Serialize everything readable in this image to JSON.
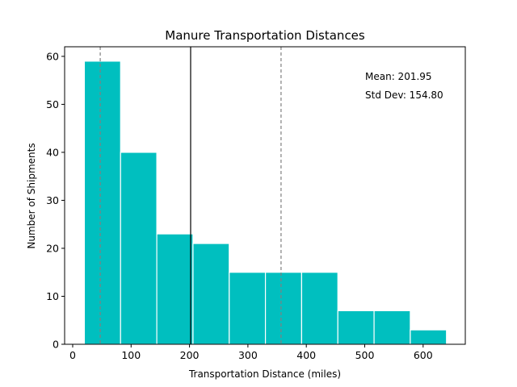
{
  "chart_data": {
    "type": "bar",
    "title": "Manure Transportation Distances",
    "xlabel": "Transportation Distance (miles)",
    "ylabel": "Number of Shipments",
    "bins": [
      {
        "start": 20,
        "end": 82,
        "count": 59
      },
      {
        "start": 82,
        "end": 144,
        "count": 40
      },
      {
        "start": 144,
        "end": 206,
        "count": 23
      },
      {
        "start": 206,
        "end": 268,
        "count": 21
      },
      {
        "start": 268,
        "end": 330,
        "count": 15
      },
      {
        "start": 330,
        "end": 392,
        "count": 15
      },
      {
        "start": 392,
        "end": 454,
        "count": 15
      },
      {
        "start": 454,
        "end": 516,
        "count": 7
      },
      {
        "start": 516,
        "end": 578,
        "count": 7
      },
      {
        "start": 578,
        "end": 640,
        "count": 3
      }
    ],
    "xlim": [
      -13.8,
      672.2
    ],
    "ylim": [
      0,
      62
    ],
    "xticks": [
      0,
      100,
      200,
      300,
      400,
      500,
      600
    ],
    "yticks": [
      0,
      10,
      20,
      30,
      40,
      50,
      60
    ],
    "mean_line": {
      "x": 201.95,
      "color": "#000000",
      "style": "solid"
    },
    "std_lines": [
      {
        "x": 47.15,
        "color": "#808080",
        "style": "dashed"
      },
      {
        "x": 356.75,
        "color": "#808080",
        "style": "dashed"
      }
    ],
    "annotations": {
      "mean": "Mean: 201.95",
      "std": "Std Dev: 154.80"
    },
    "bar_color": "#00bfbf",
    "bar_edge_color": "#ffffff",
    "grid": false
  }
}
